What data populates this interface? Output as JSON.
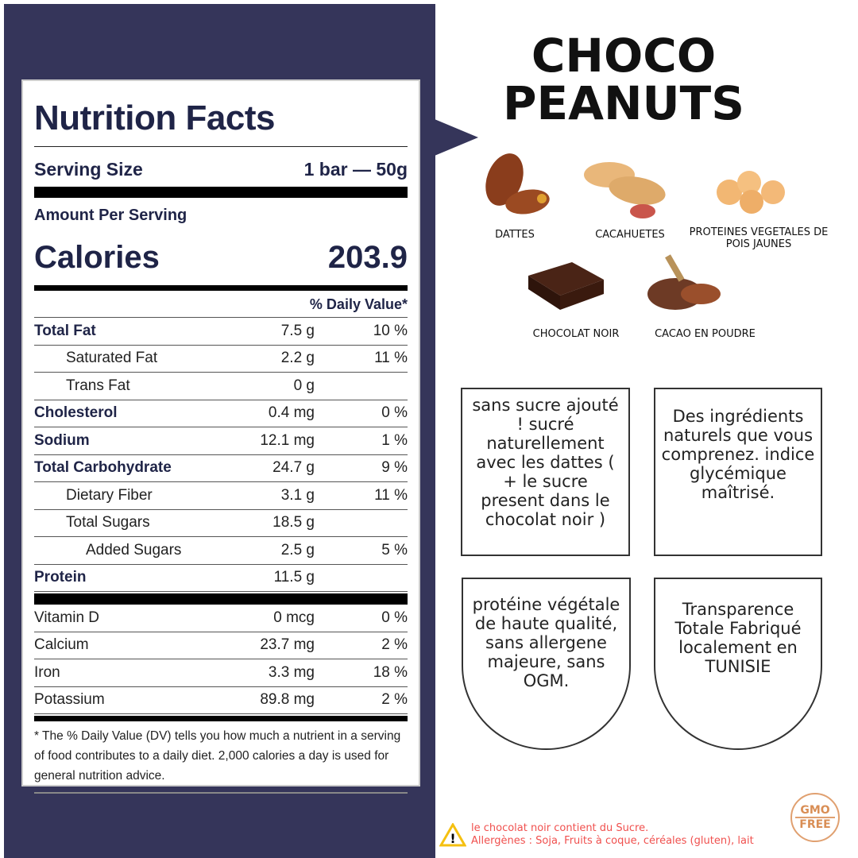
{
  "nutrition": {
    "title": "Nutrition Facts",
    "serving_label": "Serving Size",
    "serving_value": "1 bar — 50g",
    "amount_per_serving": "Amount Per Serving",
    "calories_label": "Calories",
    "calories_value": "203.9",
    "dv_header": "% Daily Value*",
    "nutrients": [
      {
        "name": "Total Fat",
        "amount": "7.5 g",
        "dv": "10 %",
        "bold": true,
        "indent": 0
      },
      {
        "name": "Saturated Fat",
        "amount": "2.2 g",
        "dv": "11 %",
        "bold": false,
        "indent": 1
      },
      {
        "name": "Trans Fat",
        "amount": "0 g",
        "dv": "",
        "bold": false,
        "indent": 1
      },
      {
        "name": "Cholesterol",
        "amount": "0.4 mg",
        "dv": "0 %",
        "bold": true,
        "indent": 0
      },
      {
        "name": "Sodium",
        "amount": "12.1 mg",
        "dv": "1 %",
        "bold": true,
        "indent": 0
      },
      {
        "name": "Total Carbohydrate",
        "amount": "24.7 g",
        "dv": "9 %",
        "bold": true,
        "indent": 0
      },
      {
        "name": "Dietary Fiber",
        "amount": "3.1 g",
        "dv": "11 %",
        "bold": false,
        "indent": 1
      },
      {
        "name": "Total Sugars",
        "amount": "18.5 g",
        "dv": "",
        "bold": false,
        "indent": 1
      },
      {
        "name": "Added Sugars",
        "amount": "2.5 g",
        "dv": "5 %",
        "bold": false,
        "indent": 2
      },
      {
        "name": "Protein",
        "amount": "11.5 g",
        "dv": "",
        "bold": true,
        "indent": 0
      }
    ],
    "vitamins": [
      {
        "name": "Vitamin D",
        "amount": "0 mcg",
        "dv": "0 %"
      },
      {
        "name": "Calcium",
        "amount": "23.7 mg",
        "dv": "2 %"
      },
      {
        "name": "Iron",
        "amount": "3.3 mg",
        "dv": "18 %"
      },
      {
        "name": "Potassium",
        "amount": "89.8 mg",
        "dv": "2 %"
      }
    ],
    "footnote": "* The % Daily Value (DV) tells you how much a nutrient in a serving of food contributes to a daily diet. 2,000 calories a day is used for general nutrition advice."
  },
  "brand": {
    "line1": "CHOCO",
    "line2": "PEANUTS"
  },
  "ingredients": [
    {
      "label": "DATTES",
      "icon": "dates-icon"
    },
    {
      "label": "CACAHUETES",
      "icon": "peanuts-icon"
    },
    {
      "label": "PROTEINES VEGETALES DE POIS JAUNES",
      "icon": "yellow-peas-icon"
    },
    {
      "label": "CHOCOLAT NOIR",
      "icon": "dark-chocolate-icon"
    },
    {
      "label": "CACAO EN POUDRE",
      "icon": "cocoa-powder-icon"
    }
  ],
  "features": [
    "sans sucre ajouté ! sucré naturellement avec les dattes ( + le sucre present dans le chocolat noir )",
    "Des ingrédients naturels que vous comprenez. indice glycémique maîtrisé.",
    "protéine végétale de haute qualité, sans allergene majeure, sans OGM.",
    "Transparence Totale Fabriqué localement en TUNISIE"
  ],
  "warning": {
    "line1": "le chocolat noir contient du Sucre.",
    "line2": "Allergènes : Soja, Fruits à coque, céréales (gluten), lait"
  },
  "badge": {
    "line1": "GMO",
    "line2": "FREE"
  },
  "colors": {
    "panel": "#35355a",
    "title": "#1f2447",
    "warning": "#f0504e",
    "badge": "#d98e55"
  }
}
